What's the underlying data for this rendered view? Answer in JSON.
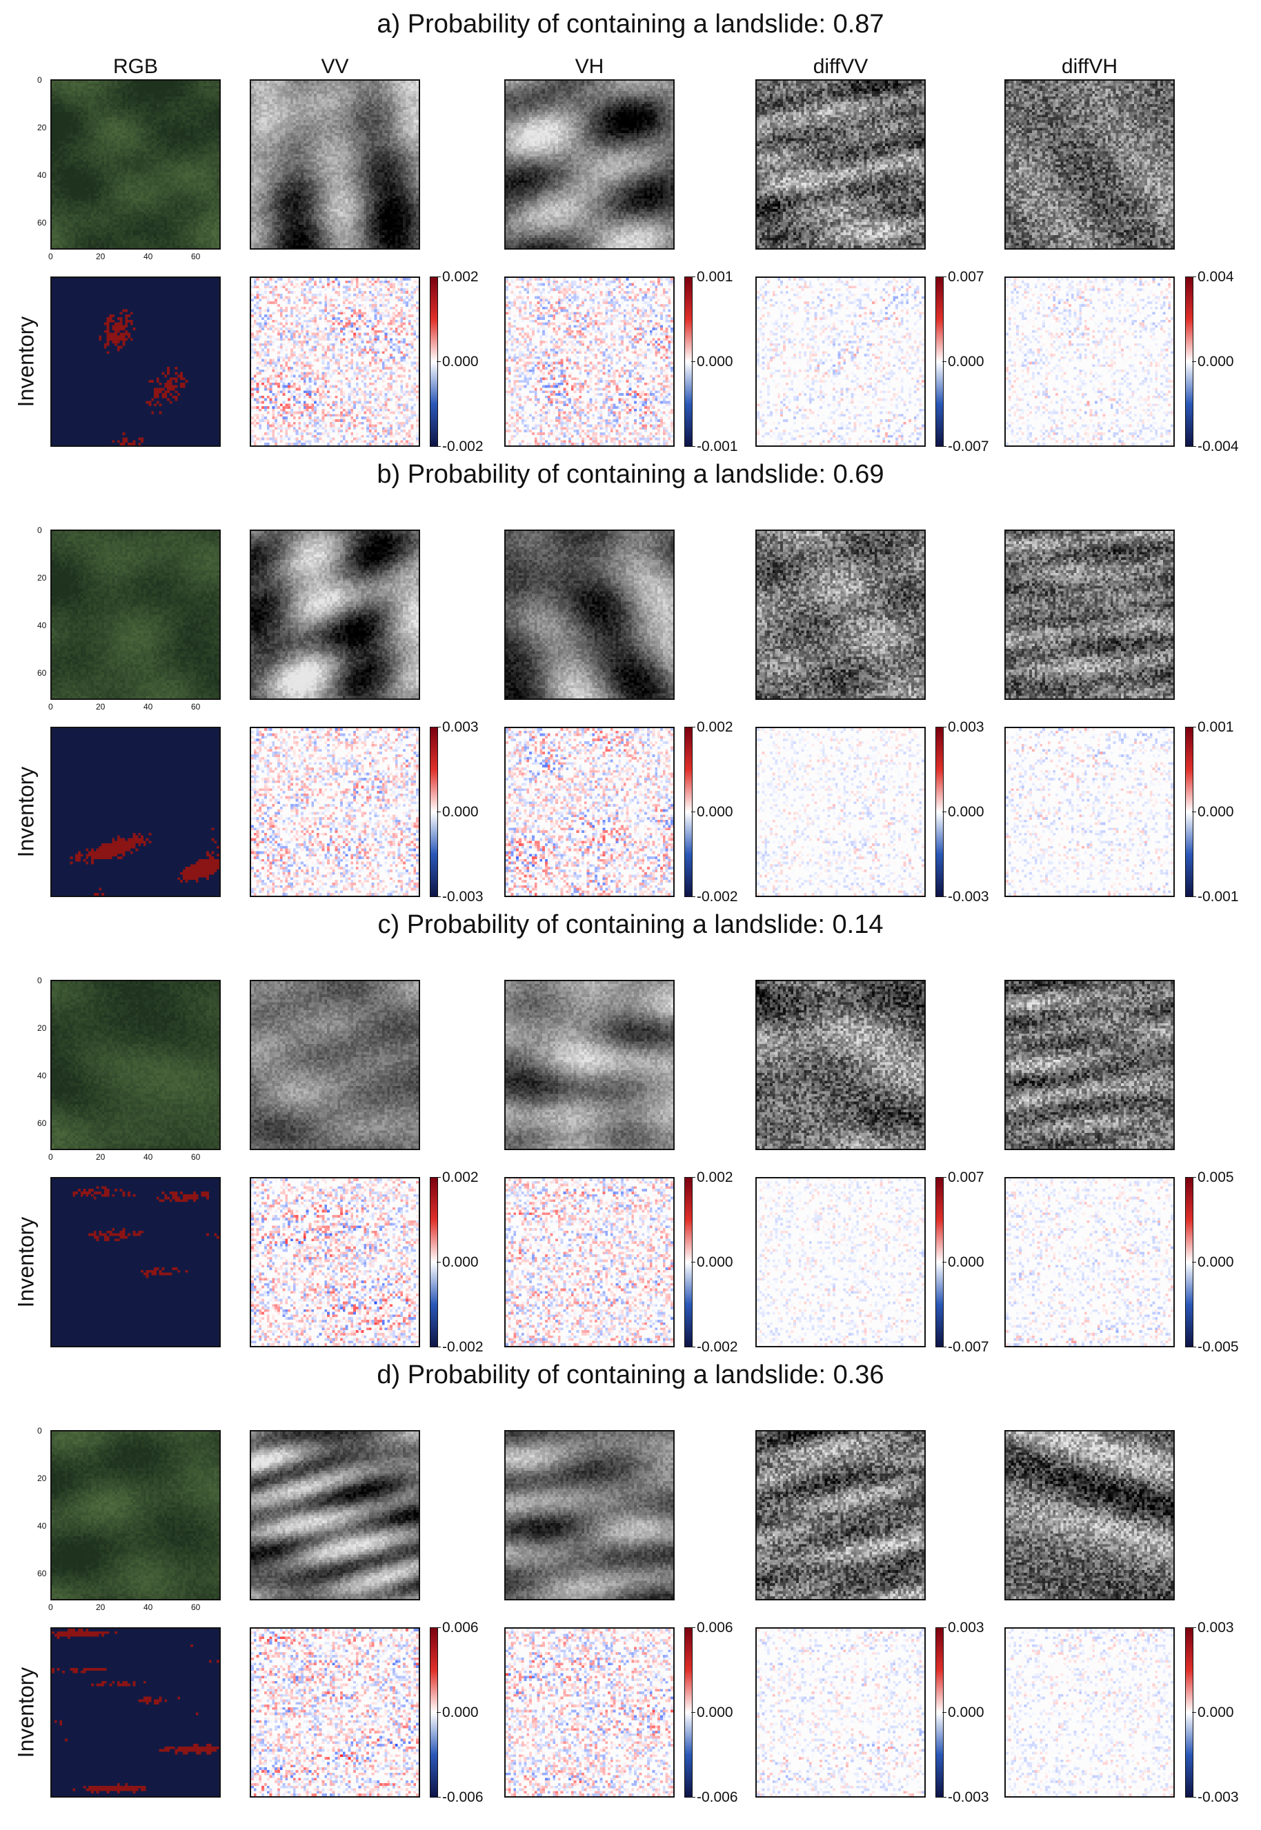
{
  "column_headers": [
    "RGB",
    "VV",
    "VH",
    "diffVV",
    "diffVH"
  ],
  "row_label": "Inventory",
  "rgb_axis_ticks": [
    "0",
    "20",
    "40",
    "60"
  ],
  "panels": [
    {
      "title": "a) Probability of containing a landslide: 0.87",
      "probability": 0.87,
      "show_headers": true,
      "colorbars": [
        {
          "max": "0.002",
          "mid": "0.000",
          "min": "-0.002"
        },
        {
          "max": "0.001",
          "mid": "0.000",
          "min": "-0.001"
        },
        {
          "max": "0.007",
          "mid": "0.000",
          "min": "-0.007"
        },
        {
          "max": "0.004",
          "mid": "0.000",
          "min": "-0.004"
        }
      ]
    },
    {
      "title": "b) Probability of containing a landslide: 0.69",
      "probability": 0.69,
      "show_headers": false,
      "colorbars": [
        {
          "max": "0.003",
          "mid": "0.000",
          "min": "-0.003"
        },
        {
          "max": "0.002",
          "mid": "0.000",
          "min": "-0.002"
        },
        {
          "max": "0.003",
          "mid": "0.000",
          "min": "-0.003"
        },
        {
          "max": "0.001",
          "mid": "0.000",
          "min": "-0.001"
        }
      ]
    },
    {
      "title": "c) Probability of containing a landslide: 0.14",
      "probability": 0.14,
      "show_headers": false,
      "colorbars": [
        {
          "max": "0.002",
          "mid": "0.000",
          "min": "-0.002"
        },
        {
          "max": "0.002",
          "mid": "0.000",
          "min": "-0.002"
        },
        {
          "max": "0.007",
          "mid": "0.000",
          "min": "-0.007"
        },
        {
          "max": "0.005",
          "mid": "0.000",
          "min": "-0.005"
        }
      ]
    },
    {
      "title": "d) Probability of containing a landslide: 0.36",
      "probability": 0.36,
      "show_headers": false,
      "colorbars": [
        {
          "max": "0.006",
          "mid": "0.000",
          "min": "-0.006"
        },
        {
          "max": "0.006",
          "mid": "0.000",
          "min": "-0.006"
        },
        {
          "max": "0.003",
          "mid": "0.000",
          "min": "-0.003"
        },
        {
          "max": "0.003",
          "mid": "0.000",
          "min": "-0.003"
        }
      ]
    }
  ],
  "colors": {
    "inventory_background": "#121a44",
    "inventory_landslide": "#8b1414",
    "colormap_positive": "#c8161d",
    "colormap_negative": "#1f3f99"
  }
}
